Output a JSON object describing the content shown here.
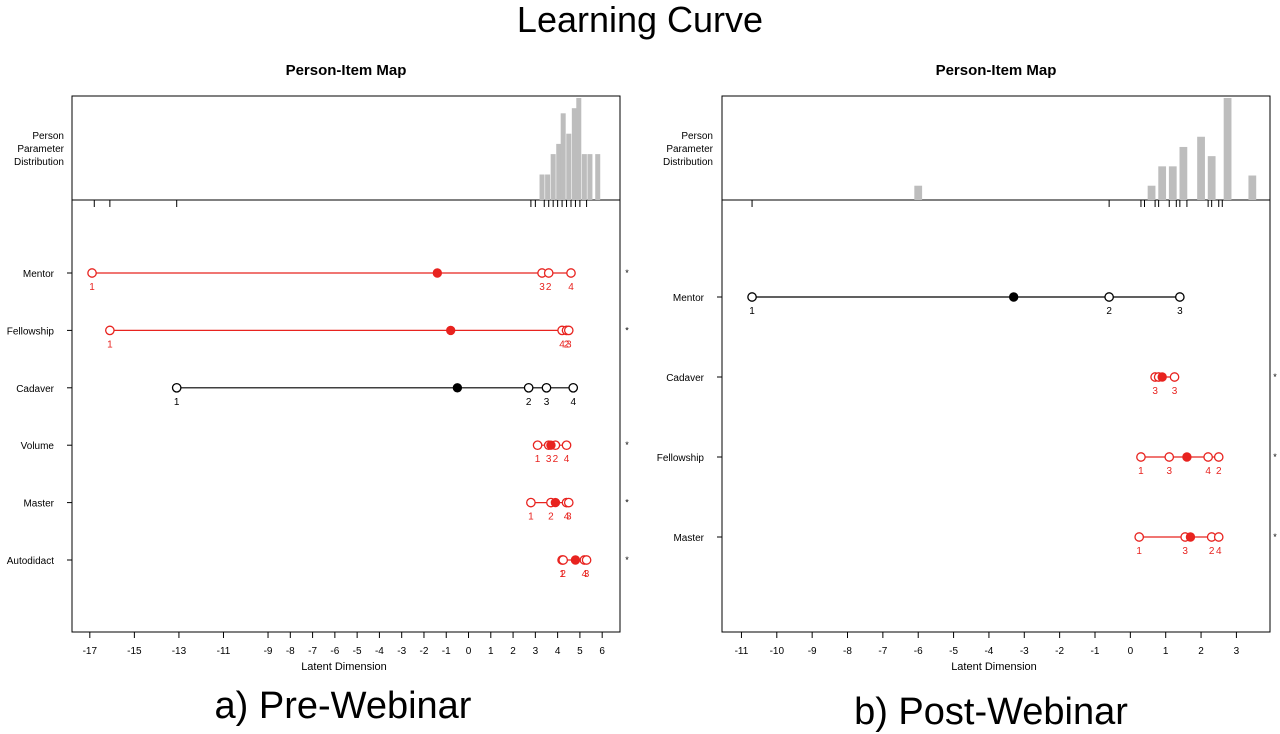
{
  "figure": {
    "title": "Learning Curve",
    "captions": [
      "a) Pre-Webinar",
      "b) Post-Webinar"
    ]
  },
  "colors": {
    "misfit": "#e8231f",
    "fit": "#000000",
    "histogram": "#bdbdbd"
  },
  "chart_data": [
    {
      "type": "scatter",
      "title": "Person-Item Map",
      "caption": "a) Pre-Webinar",
      "xlabel": "Latent Dimension",
      "xlim": [
        -17.8,
        6.8
      ],
      "xticks": [
        -17,
        -15,
        -13,
        -11,
        -9,
        -8,
        -7,
        -6,
        -5,
        -4,
        -3,
        -2,
        -1,
        0,
        1,
        2,
        3,
        4,
        5,
        6
      ],
      "histogram": {
        "label": "Person\nParameter\nDistribution",
        "bins": [
          {
            "x": 3.3,
            "h": 0.25
          },
          {
            "x": 3.55,
            "h": 0.25
          },
          {
            "x": 3.8,
            "h": 0.45
          },
          {
            "x": 4.05,
            "h": 0.55
          },
          {
            "x": 4.25,
            "h": 0.85
          },
          {
            "x": 4.5,
            "h": 0.65
          },
          {
            "x": 4.75,
            "h": 0.9
          },
          {
            "x": 4.95,
            "h": 1.0
          },
          {
            "x": 5.2,
            "h": 0.45
          },
          {
            "x": 5.45,
            "h": 0.45
          },
          {
            "x": 5.8,
            "h": 0.45
          }
        ],
        "rug": [
          -16.8,
          -16.1,
          -13.1,
          2.8,
          3.0,
          3.4,
          3.6,
          3.8,
          4.0,
          4.2,
          4.4,
          4.6,
          4.8,
          5.0,
          5.3
        ]
      },
      "items": [
        {
          "name": "Mentor",
          "misfit": true,
          "location": -1.4,
          "thresholds": [
            -16.9,
            3.3,
            3.6,
            4.6
          ],
          "labels": [
            "1",
            "3",
            "2",
            "4"
          ]
        },
        {
          "name": "Fellowship",
          "misfit": true,
          "location": -0.8,
          "thresholds": [
            -16.1,
            4.2,
            4.4,
            4.5
          ],
          "labels": [
            "1",
            "4",
            "2",
            "3"
          ]
        },
        {
          "name": "Cadaver",
          "misfit": false,
          "location": -0.5,
          "thresholds": [
            -13.1,
            2.7,
            3.5,
            4.7
          ],
          "labels": [
            "1",
            "2",
            "3",
            "4"
          ]
        },
        {
          "name": "Volume",
          "misfit": true,
          "location": 3.7,
          "thresholds": [
            3.1,
            3.6,
            3.9,
            4.4
          ],
          "labels": [
            "1",
            "3",
            "2",
            "4"
          ]
        },
        {
          "name": "Master",
          "misfit": true,
          "location": 3.9,
          "thresholds": [
            2.8,
            3.7,
            4.4,
            4.5
          ],
          "labels": [
            "1",
            "2",
            "4",
            "3"
          ]
        },
        {
          "name": "Autodidact",
          "misfit": true,
          "location": 4.8,
          "thresholds": [
            4.2,
            4.25,
            5.2,
            5.3
          ],
          "labels": [
            "1",
            "2",
            "4",
            "3"
          ]
        }
      ]
    },
    {
      "type": "scatter",
      "title": "Person-Item Map",
      "caption": "b) Post-Webinar",
      "xlabel": "Latent Dimension",
      "xlim": [
        -11.55,
        3.95
      ],
      "xticks": [
        -11,
        -10,
        -9,
        -8,
        -7,
        -6,
        -5,
        -4,
        -3,
        -2,
        -1,
        0,
        1,
        2,
        3
      ],
      "histogram": {
        "label": "Person\nParameter\nDistribution",
        "bins": [
          {
            "x": -6.0,
            "h": 0.14
          },
          {
            "x": 0.6,
            "h": 0.14
          },
          {
            "x": 0.9,
            "h": 0.33
          },
          {
            "x": 1.2,
            "h": 0.33
          },
          {
            "x": 1.5,
            "h": 0.52
          },
          {
            "x": 2.0,
            "h": 0.62
          },
          {
            "x": 2.3,
            "h": 0.43
          },
          {
            "x": 2.75,
            "h": 1.0
          },
          {
            "x": 3.45,
            "h": 0.24
          }
        ],
        "rug": [
          -10.7,
          -0.6,
          0.3,
          0.4,
          0.7,
          0.8,
          1.1,
          1.3,
          1.4,
          1.6,
          2.2,
          2.3,
          2.5,
          2.6
        ]
      },
      "items": [
        {
          "name": "Mentor",
          "misfit": false,
          "location": -3.3,
          "thresholds": [
            -10.7,
            -0.6,
            1.4
          ],
          "labels": [
            "1",
            "2",
            "3"
          ]
        },
        {
          "name": "Cadaver",
          "misfit": true,
          "location": 0.9,
          "thresholds": [
            0.7,
            0.8,
            1.25
          ],
          "labels": [
            "3",
            "",
            "3"
          ]
        },
        {
          "name": "Fellowship",
          "misfit": true,
          "location": 1.6,
          "thresholds": [
            0.3,
            1.1,
            2.2,
            2.5
          ],
          "labels": [
            "1",
            "3",
            "4",
            "2"
          ]
        },
        {
          "name": "Master",
          "misfit": true,
          "location": 1.7,
          "thresholds": [
            0.25,
            1.55,
            2.3,
            2.5
          ],
          "labels": [
            "1",
            "3",
            "2",
            "4"
          ]
        }
      ]
    }
  ]
}
